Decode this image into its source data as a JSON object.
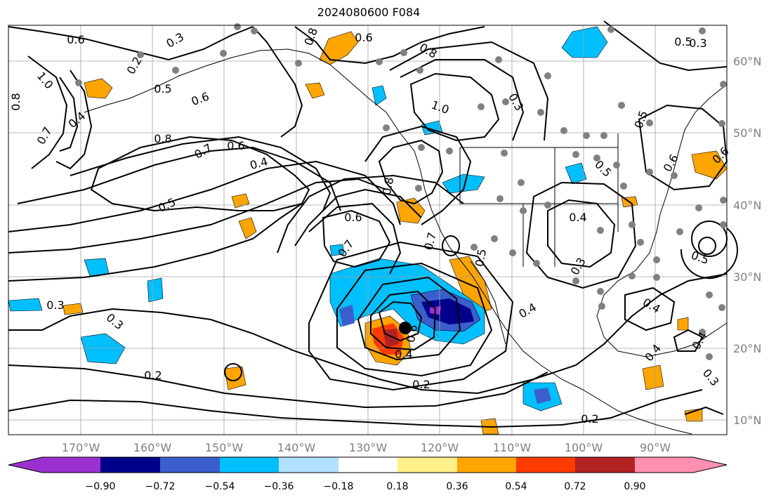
{
  "title": "2024080600 F084",
  "lat_labels": [
    "60°N",
    "50°N",
    "40°N",
    "30°N",
    "20°N",
    "10°N"
  ],
  "lon_labels": [
    "170°W",
    "160°W",
    "150°W",
    "140°W",
    "130°W",
    "120°W",
    "110°W",
    "100°W",
    "90°W"
  ],
  "colorbar": {
    "tick_labels": [
      "−0.90",
      "−0.72",
      "−0.54",
      "−0.36",
      "−0.18",
      "0.18",
      "0.36",
      "0.54",
      "0.72",
      "0.90"
    ],
    "colors": [
      "#9b30d0",
      "#00008b",
      "#3a5fcd",
      "#00bfff",
      "#b0e2ff",
      "#ffffff",
      "#fff08a",
      "#ffa500",
      "#ff3c00",
      "#b22222",
      "#ff8fb0"
    ]
  },
  "contour_labels": [
    "0.6",
    "0.3",
    "0.2",
    "0.8",
    "1.0",
    "0.7",
    "0.4",
    "0.5",
    "0.6",
    "0.8",
    "0.7",
    "0.6",
    "0.4",
    "0.5",
    "0.6",
    "0.7",
    "0.8",
    "0.6",
    "0.8",
    "1.0",
    "0.8",
    "0.3",
    "0.5",
    "0.6",
    "0.5",
    "0.4",
    "0.7",
    "0.5",
    "0.3",
    "0.5",
    "0.3",
    "0.4",
    "0.4",
    "0.6",
    "0.4",
    "0.2",
    "0.2",
    "0.3",
    "0.2",
    "0.3",
    "0.4",
    "0.3",
    "0.4",
    "0.6",
    "0.5"
  ],
  "colors": {
    "contour": "#000000",
    "grid": "#a0a0a0",
    "station_dot": "#808080",
    "storm_center": "#000000"
  }
}
